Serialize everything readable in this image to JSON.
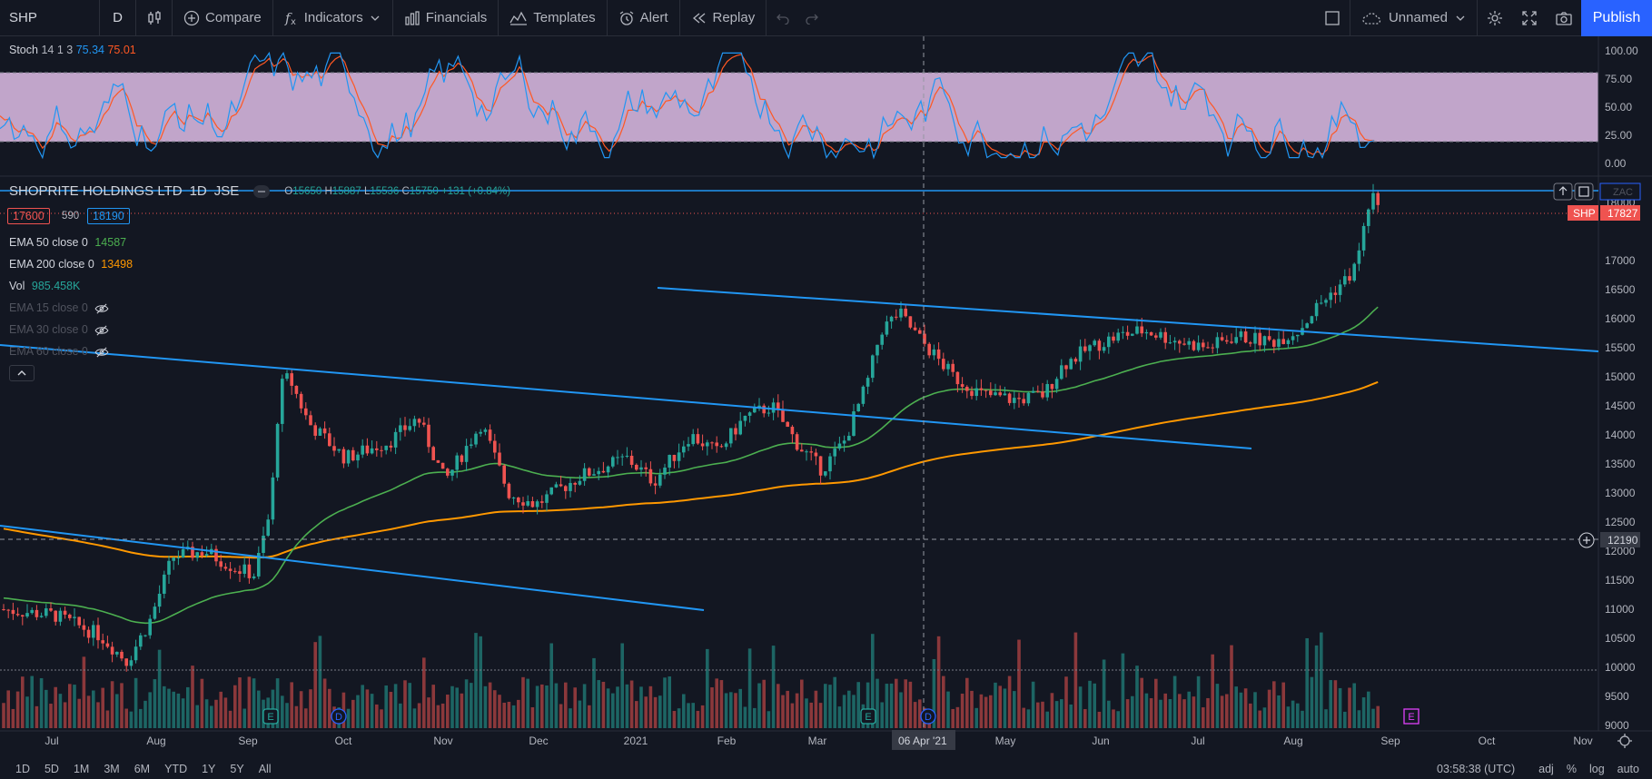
{
  "toolbar": {
    "symbol": "SHP",
    "interval": "D",
    "compare_label": "Compare",
    "indicators_label": "Indicators",
    "financials_label": "Financials",
    "templates_label": "Templates",
    "alert_label": "Alert",
    "replay_label": "Replay",
    "layout_name": "Unnamed",
    "publish_label": "Publish"
  },
  "stoch_legend": {
    "name": "Stoch",
    "params": "14 1 3",
    "k": "75.34",
    "d": "75.01"
  },
  "main_legend": {
    "title": "SHOPRITE HOLDINGS LTD",
    "interval": "1D",
    "exchange": "JSE",
    "o_label": "O",
    "o": "15650",
    "h_label": "H",
    "h": "15887",
    "l_label": "L",
    "l": "15536",
    "c_label": "C",
    "c": "15750",
    "change": "+131 (+0.84%)",
    "bid": "17600",
    "spread": "590",
    "ask": "18190"
  },
  "indicators": [
    {
      "label": "EMA 50 close 0",
      "value": "14587",
      "color": "#4caf50",
      "visible": true
    },
    {
      "label": "EMA 200 close 0",
      "value": "13498",
      "color": "#ff9800",
      "visible": true
    },
    {
      "label": "Vol",
      "value": "985.458K",
      "color": "#26a69a",
      "visible": true
    },
    {
      "label": "EMA 15 close 0",
      "value": "",
      "visible": false
    },
    {
      "label": "EMA 30 close 0",
      "value": "",
      "visible": false
    },
    {
      "label": "EMA 60 close 0",
      "value": "",
      "visible": false
    }
  ],
  "stoch_axis": [
    "100.00",
    "75.00",
    "50.00",
    "25.00",
    "0.00"
  ],
  "price_axis": [
    "18000",
    "17000",
    "16500",
    "16000",
    "15500",
    "15000",
    "14500",
    "14000",
    "13500",
    "13000",
    "12500",
    "12000",
    "11500",
    "11000",
    "10500",
    "10000",
    "9500",
    "9000"
  ],
  "price_tags": {
    "symbol_tag": "SHP",
    "last_price": "17827",
    "crosshair_price": "12190",
    "faded_label": "ZAC"
  },
  "time_axis": [
    "Jul",
    "Aug",
    "Sep",
    "Oct",
    "Nov",
    "Dec",
    "2021",
    "Feb",
    "Mar",
    "Apr",
    "May",
    "Jun",
    "Jul",
    "Aug",
    "Sep",
    "Oct",
    "Nov"
  ],
  "crosshair_date": "06 Apr '21",
  "event_markers": [
    "E",
    "D",
    "E",
    "D",
    "E"
  ],
  "bottom": {
    "ranges": [
      "1D",
      "5D",
      "1M",
      "3M",
      "6M",
      "YTD",
      "1Y",
      "5Y",
      "All"
    ],
    "clock": "03:58:38 (UTC)",
    "adj": "adj",
    "pct": "%",
    "log": "log",
    "auto": "auto"
  },
  "colors": {
    "up": "#26a69a",
    "down": "#ef5350",
    "ema50": "#4caf50",
    "ema200": "#ff9800",
    "trend": "#2196f3",
    "stoch_k": "#2196f3",
    "stoch_d": "#ff5722"
  }
}
